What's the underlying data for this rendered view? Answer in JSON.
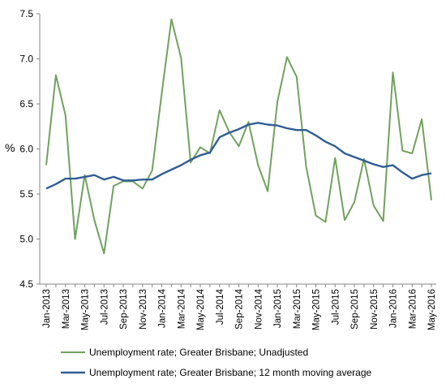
{
  "chart_data": {
    "type": "line",
    "title": "",
    "xlabel": "",
    "ylabel": "%",
    "ylim": [
      4.5,
      7.5
    ],
    "y_ticks": [
      "4.5",
      "5.0",
      "5.5",
      "6.0",
      "6.5",
      "7.0",
      "7.5"
    ],
    "grid": false,
    "legend_position": "bottom",
    "x": [
      "Jan-2013",
      "Feb-2013",
      "Mar-2013",
      "Apr-2013",
      "May-2013",
      "Jun-2013",
      "Jul-2013",
      "Aug-2013",
      "Sep-2013",
      "Oct-2013",
      "Nov-2013",
      "Dec-2013",
      "Jan-2014",
      "Feb-2014",
      "Mar-2014",
      "Apr-2014",
      "May-2014",
      "Jun-2014",
      "Jul-2014",
      "Aug-2014",
      "Sep-2014",
      "Oct-2014",
      "Nov-2014",
      "Dec-2014",
      "Jan-2015",
      "Feb-2015",
      "Mar-2015",
      "Apr-2015",
      "May-2015",
      "Jun-2015",
      "Jul-2015",
      "Aug-2015",
      "Sep-2015",
      "Oct-2015",
      "Nov-2015",
      "Dec-2015",
      "Jan-2016",
      "Feb-2016",
      "Mar-2016",
      "Apr-2016",
      "May-2016"
    ],
    "x_tick_labels": [
      "Jan-2013",
      "Mar-2013",
      "May-2013",
      "Jul-2013",
      "Sep-2013",
      "Nov-2013",
      "Jan-2014",
      "Mar-2014",
      "May-2014",
      "Jul-2014",
      "Sep-2014",
      "Nov-2014",
      "Jan-2015",
      "Mar-2015",
      "May-2015",
      "Jul-2015",
      "Sep-2015",
      "Nov-2015",
      "Jan-2016",
      "Mar-2016",
      "May-2016"
    ],
    "series": [
      {
        "name": "Unemployment rate; Greater Brisbane; Unadjusted",
        "color": "#70A25E",
        "values": [
          5.82,
          6.82,
          6.37,
          5.0,
          5.71,
          5.21,
          4.84,
          5.59,
          5.64,
          5.64,
          5.56,
          5.76,
          6.62,
          7.44,
          7.01,
          5.85,
          6.02,
          5.95,
          6.43,
          6.19,
          6.03,
          6.3,
          5.82,
          5.53,
          6.52,
          7.02,
          6.8,
          5.8,
          5.26,
          5.19,
          5.9,
          5.21,
          5.41,
          5.89,
          5.37,
          5.2,
          6.85,
          5.98,
          5.95,
          6.33,
          5.43
        ]
      },
      {
        "name": "Unemployment rate; Greater Brisbane; 12 month moving average",
        "color": "#2F5D96",
        "values": [
          5.56,
          5.61,
          5.67,
          5.67,
          5.69,
          5.71,
          5.66,
          5.69,
          5.65,
          5.65,
          5.66,
          5.66,
          5.72,
          5.77,
          5.82,
          5.88,
          5.93,
          5.96,
          6.13,
          6.18,
          6.22,
          6.27,
          6.29,
          6.27,
          6.26,
          6.23,
          6.21,
          6.21,
          6.15,
          6.08,
          6.03,
          5.95,
          5.91,
          5.87,
          5.83,
          5.8,
          5.82,
          5.74,
          5.67,
          5.71,
          5.73
        ]
      }
    ]
  }
}
